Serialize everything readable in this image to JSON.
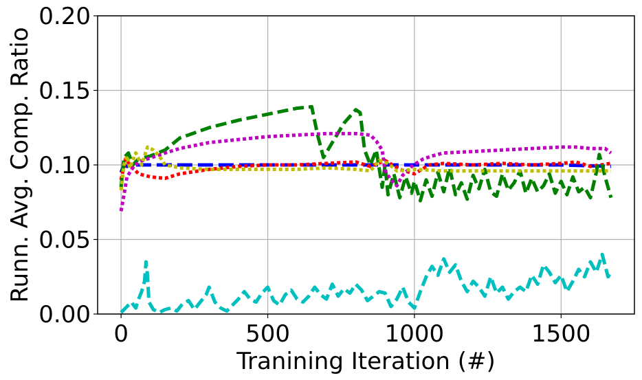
{
  "chart_data": {
    "type": "line",
    "title": "",
    "xlabel": "Tranining Iteration (#)",
    "ylabel": "Runn. Avg. Comp. Ratio",
    "xlim": [
      -80,
      1750
    ],
    "ylim": [
      0.0,
      0.2
    ],
    "xticks": [
      "0",
      "500",
      "1000",
      "1500"
    ],
    "yticks": [
      "0.00",
      "0.05",
      "0.10",
      "0.15",
      "0.20"
    ],
    "grid": true,
    "legend": "none",
    "series": [
      {
        "color": "#0000ff",
        "dash": "long-dash",
        "x": [
          0,
          10,
          20,
          40,
          80,
          150,
          300,
          600,
          900,
          1200,
          1500,
          1670
        ],
        "y": [
          0.095,
          0.1,
          0.099,
          0.1,
          0.1,
          0.1,
          0.1,
          0.1,
          0.1,
          0.1,
          0.1,
          0.099
        ]
      },
      {
        "color": "#ff0000",
        "dash": "dot",
        "x": [
          0,
          15,
          30,
          60,
          100,
          150,
          200,
          300,
          400,
          500,
          600,
          700,
          800,
          850,
          900,
          950,
          1000,
          1050,
          1100,
          1200,
          1300,
          1400,
          1500,
          1550,
          1600,
          1670
        ],
        "y": [
          0.09,
          0.104,
          0.1,
          0.094,
          0.092,
          0.091,
          0.094,
          0.097,
          0.099,
          0.1,
          0.1,
          0.101,
          0.102,
          0.099,
          0.103,
          0.097,
          0.094,
          0.1,
          0.101,
          0.1,
          0.101,
          0.1,
          0.101,
          0.102,
          0.099,
          0.101
        ]
      },
      {
        "color": "#008000",
        "dash": "dash",
        "x": [
          0,
          10,
          25,
          40,
          60,
          80,
          100,
          150,
          200,
          300,
          400,
          500,
          600,
          650,
          670,
          690,
          720,
          760,
          800,
          815,
          830,
          850,
          870,
          890,
          900,
          910,
          930,
          950,
          970,
          990,
          1000,
          1020,
          1040,
          1060,
          1080,
          1100,
          1120,
          1140,
          1160,
          1180,
          1200,
          1220,
          1240,
          1260,
          1280,
          1300,
          1320,
          1340,
          1360,
          1380,
          1400,
          1420,
          1440,
          1460,
          1480,
          1500,
          1520,
          1540,
          1560,
          1580,
          1600,
          1620,
          1630,
          1640,
          1650,
          1660,
          1670
        ],
        "y": [
          0.085,
          0.105,
          0.108,
          0.1,
          0.104,
          0.105,
          0.106,
          0.11,
          0.118,
          0.125,
          0.13,
          0.134,
          0.138,
          0.139,
          0.12,
          0.105,
          0.115,
          0.128,
          0.137,
          0.135,
          0.11,
          0.1,
          0.11,
          0.085,
          0.1,
          0.08,
          0.094,
          0.078,
          0.092,
          0.081,
          0.089,
          0.076,
          0.09,
          0.079,
          0.095,
          0.082,
          0.098,
          0.08,
          0.088,
          0.077,
          0.093,
          0.084,
          0.097,
          0.082,
          0.079,
          0.094,
          0.083,
          0.088,
          0.096,
          0.081,
          0.091,
          0.082,
          0.086,
          0.094,
          0.081,
          0.089,
          0.08,
          0.092,
          0.082,
          0.085,
          0.078,
          0.095,
          0.107,
          0.1,
          0.092,
          0.085,
          0.078
        ]
      },
      {
        "color": "#c000c0",
        "dash": "dot",
        "x": [
          0,
          10,
          20,
          40,
          60,
          90,
          120,
          150,
          200,
          250,
          300,
          400,
          500,
          600,
          700,
          800,
          850,
          870,
          890,
          900,
          920,
          940,
          960,
          990,
          1030,
          1060,
          1100,
          1200,
          1300,
          1400,
          1500,
          1550,
          1600,
          1650,
          1670
        ],
        "y": [
          0.069,
          0.08,
          0.092,
          0.098,
          0.102,
          0.104,
          0.106,
          0.108,
          0.111,
          0.113,
          0.115,
          0.117,
          0.119,
          0.12,
          0.121,
          0.121,
          0.12,
          0.116,
          0.11,
          0.096,
          0.09,
          0.086,
          0.093,
          0.099,
          0.104,
          0.106,
          0.108,
          0.109,
          0.11,
          0.111,
          0.112,
          0.112,
          0.111,
          0.111,
          0.108
        ]
      },
      {
        "color": "#bfbf00",
        "dash": "dot",
        "x": [
          0,
          10,
          20,
          30,
          50,
          70,
          90,
          110,
          130,
          150,
          200,
          300,
          400,
          500,
          600,
          700,
          800,
          850,
          880,
          910,
          940,
          1000,
          1100,
          1200,
          1300,
          1400,
          1500,
          1600,
          1670
        ],
        "y": [
          0.083,
          0.1,
          0.106,
          0.098,
          0.108,
          0.1,
          0.112,
          0.11,
          0.106,
          0.1,
          0.098,
          0.097,
          0.097,
          0.097,
          0.097,
          0.098,
          0.097,
          0.096,
          0.103,
          0.101,
          0.096,
          0.097,
          0.096,
          0.096,
          0.096,
          0.096,
          0.096,
          0.096,
          0.096
        ]
      },
      {
        "color": "#00bfbf",
        "dash": "dash",
        "x": [
          0,
          10,
          20,
          35,
          50,
          60,
          70,
          80,
          85,
          90,
          95,
          110,
          130,
          150,
          170,
          190,
          210,
          230,
          250,
          270,
          290,
          300,
          320,
          340,
          360,
          380,
          400,
          420,
          440,
          460,
          480,
          500,
          520,
          540,
          560,
          580,
          600,
          620,
          640,
          660,
          680,
          700,
          720,
          740,
          760,
          780,
          800,
          820,
          840,
          860,
          880,
          900,
          920,
          940,
          960,
          980,
          1000,
          1020,
          1040,
          1060,
          1080,
          1100,
          1120,
          1140,
          1160,
          1180,
          1200,
          1220,
          1240,
          1260,
          1280,
          1300,
          1320,
          1340,
          1360,
          1380,
          1400,
          1420,
          1440,
          1460,
          1480,
          1500,
          1520,
          1540,
          1560,
          1580,
          1600,
          1620,
          1640,
          1660,
          1670
        ],
        "y": [
          0.001,
          0.003,
          0.005,
          0.008,
          0.004,
          0.01,
          0.015,
          0.022,
          0.035,
          0.026,
          0.008,
          0.003,
          0.001,
          0.003,
          0.004,
          0.002,
          0.007,
          0.009,
          0.003,
          0.008,
          0.013,
          0.018,
          0.008,
          0.004,
          0.002,
          0.006,
          0.01,
          0.015,
          0.01,
          0.008,
          0.014,
          0.018,
          0.009,
          0.006,
          0.013,
          0.016,
          0.01,
          0.008,
          0.012,
          0.018,
          0.013,
          0.01,
          0.02,
          0.012,
          0.017,
          0.014,
          0.02,
          0.016,
          0.009,
          0.012,
          0.015,
          0.014,
          0.005,
          0.01,
          0.018,
          0.008,
          0.004,
          0.015,
          0.025,
          0.032,
          0.026,
          0.037,
          0.028,
          0.033,
          0.022,
          0.015,
          0.022,
          0.018,
          0.012,
          0.025,
          0.014,
          0.018,
          0.01,
          0.015,
          0.018,
          0.015,
          0.026,
          0.02,
          0.033,
          0.028,
          0.021,
          0.026,
          0.015,
          0.022,
          0.03,
          0.025,
          0.035,
          0.028,
          0.04,
          0.025,
          0.028
        ]
      }
    ]
  }
}
